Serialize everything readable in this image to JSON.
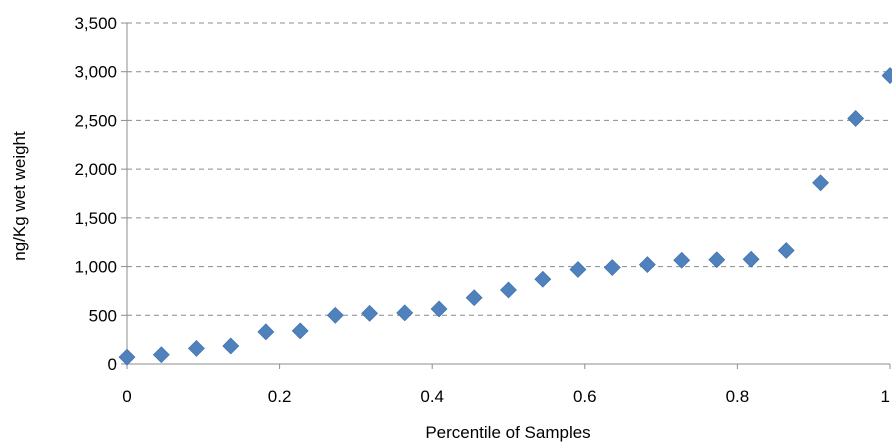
{
  "chart_data": {
    "type": "scatter",
    "title": "",
    "xlabel": "Percentile of Samples",
    "ylabel": "ng/Kg wet weight",
    "xlim": [
      0,
      1
    ],
    "ylim": [
      0,
      3500
    ],
    "x_ticks": [
      0,
      0.2,
      0.4,
      0.6,
      0.8,
      1
    ],
    "x_tick_labels": [
      "0",
      "0.2",
      "0.4",
      "0.6",
      "0.8",
      "1"
    ],
    "y_ticks": [
      0,
      500,
      1000,
      1500,
      2000,
      2500,
      3000,
      3500
    ],
    "y_tick_labels": [
      "0",
      "500",
      "1,000",
      "1,500",
      "2,000",
      "2,500",
      "3,000",
      "3,500"
    ],
    "grid": "horizontal dashed",
    "legend": "none",
    "marker": "diamond",
    "color": "#4f81bd",
    "series": [
      {
        "x": [
          0,
          0.045,
          0.091,
          0.136,
          0.182,
          0.227,
          0.273,
          0.318,
          0.364,
          0.409,
          0.455,
          0.5,
          0.545,
          0.591,
          0.636,
          0.682,
          0.727,
          0.773,
          0.818,
          0.864,
          0.909,
          0.955,
          1
        ],
        "y": [
          70,
          95,
          160,
          185,
          330,
          340,
          500,
          520,
          525,
          565,
          680,
          760,
          870,
          970,
          990,
          1020,
          1065,
          1070,
          1075,
          1165,
          1860,
          2520,
          2960
        ]
      }
    ]
  }
}
